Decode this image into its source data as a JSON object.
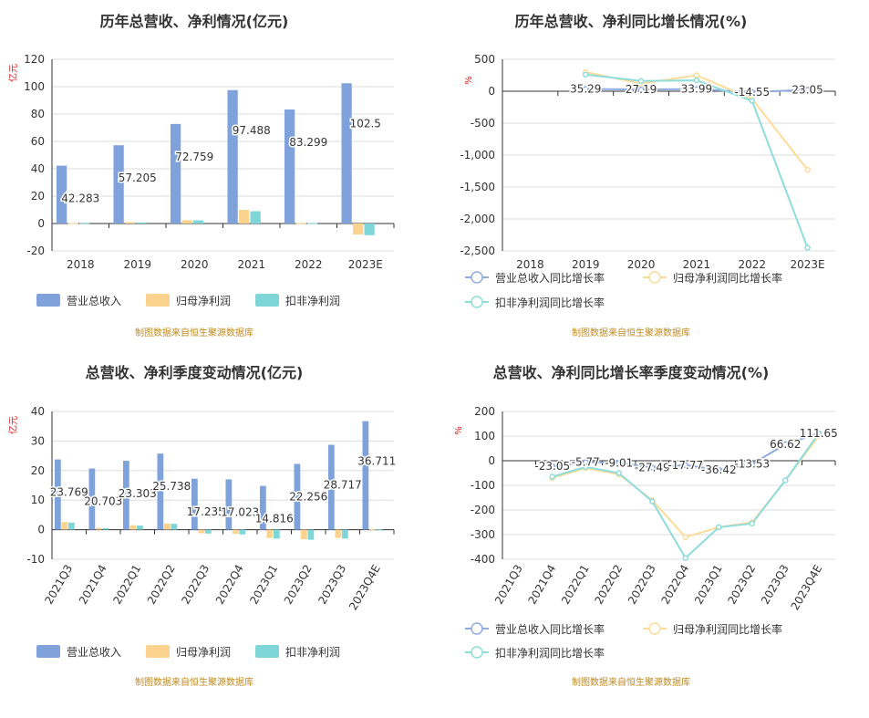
{
  "chart_data": [
    {
      "type": "bar",
      "title": "历年总营收、净利情况(亿元)",
      "unit": "亿元",
      "categories": [
        "2018",
        "2019",
        "2020",
        "2021",
        "2022",
        "2023E"
      ],
      "ylim": [
        -20,
        120
      ],
      "yticks": [
        120,
        100,
        80,
        60,
        40,
        20,
        0,
        -20
      ],
      "series": [
        {
          "name": "营业总收入",
          "color": "#7fa2db",
          "values": [
            42.283,
            57.205,
            72.759,
            97.488,
            83.299,
            102.5
          ]
        },
        {
          "name": "归母净利润",
          "color": "#fcd38e",
          "values": [
            0.3,
            1.0,
            2.4,
            10.0,
            0.4,
            -8.0
          ]
        },
        {
          "name": "扣非净利润",
          "color": "#7ed6d8",
          "values": [
            0.2,
            0.8,
            2.3,
            9.0,
            0.3,
            -8.5
          ]
        }
      ],
      "data_labels": [
        "42.283",
        "57.205",
        "72.759",
        "97.488",
        "83.299",
        "102.5"
      ],
      "source": "制图数据来自恒生聚源数据库"
    },
    {
      "type": "line",
      "title": "历年总营收、净利同比增长情况(%)",
      "unit": "%",
      "categories": [
        "2018",
        "2019",
        "2020",
        "2021",
        "2022",
        "2023E"
      ],
      "ylim": [
        -2500,
        500
      ],
      "yticks": [
        "500",
        "0",
        "-500",
        "-1,000",
        "-1,500",
        "-2,000",
        "-2,500"
      ],
      "ytick_values": [
        500,
        0,
        -500,
        -1000,
        -1500,
        -2000,
        -2500
      ],
      "series": [
        {
          "name": "营业总收入同比增长率",
          "color": "#90acdf",
          "values": [
            null,
            35.29,
            27.19,
            33.99,
            -14.55,
            23.05
          ]
        },
        {
          "name": "归母净利润同比增长率",
          "color": "#fddb9b",
          "values": [
            null,
            300,
            120,
            250,
            -120,
            -1230
          ]
        },
        {
          "name": "扣非净利润同比增长率",
          "color": "#8edcdc",
          "values": [
            null,
            260,
            160,
            170,
            -150,
            -2450
          ]
        }
      ],
      "data_labels": [
        "",
        "35.29",
        "27.19",
        "33.99",
        "-14.55",
        "23.05"
      ],
      "source": "制图数据来自恒生聚源数据库"
    },
    {
      "type": "bar",
      "title": "总营收、净利季度变动情况(亿元)",
      "unit": "亿元",
      "categories": [
        "2021Q3",
        "2021Q4",
        "2022Q1",
        "2022Q2",
        "2022Q3",
        "2022Q4",
        "2023Q1",
        "2023Q2",
        "2023Q3",
        "2023Q4E"
      ],
      "ylim": [
        -10,
        40
      ],
      "yticks": [
        40,
        30,
        20,
        10,
        0,
        -10
      ],
      "series": [
        {
          "name": "营业总收入",
          "color": "#7fa2db",
          "values": [
            23.769,
            20.703,
            23.303,
            25.738,
            17.235,
            17.023,
            14.816,
            22.256,
            28.717,
            36.711
          ]
        },
        {
          "name": "归母净利润",
          "color": "#fcd38e",
          "values": [
            2.6,
            0.6,
            1.5,
            2.1,
            -1.2,
            -1.4,
            -2.8,
            -3.2,
            -2.8,
            0.2
          ]
        },
        {
          "name": "扣非净利润",
          "color": "#7ed6d8",
          "values": [
            2.4,
            0.5,
            1.4,
            2.0,
            -1.3,
            -1.6,
            -3.0,
            -3.4,
            -3.0,
            0.1
          ]
        }
      ],
      "data_labels": [
        "23.769",
        "20.703",
        "23.303",
        "25.738",
        "17.235",
        "17.023",
        "14.816",
        "22.256",
        "28.717",
        "36.711"
      ],
      "source": "制图数据来自恒生聚源数据库"
    },
    {
      "type": "line",
      "title": "总营收、净利同比增长率季度变动情况(%)",
      "unit": "%",
      "categories": [
        "2021Q3",
        "2021Q4",
        "2022Q1",
        "2022Q2",
        "2022Q3",
        "2022Q4",
        "2023Q1",
        "2023Q2",
        "2023Q3",
        "2023Q4E"
      ],
      "ylim": [
        -400,
        200
      ],
      "yticks": [
        "200",
        "100",
        "0",
        "-100",
        "-200",
        "-300",
        "-400"
      ],
      "ytick_values": [
        200,
        100,
        0,
        -100,
        -200,
        -300,
        -400
      ],
      "series": [
        {
          "name": "营业总收入同比增长率",
          "color": "#90acdf",
          "values": [
            null,
            -23.05,
            -5.77,
            -9.01,
            -27.49,
            -17.77,
            -36.42,
            -13.53,
            66.62,
            111.65
          ]
        },
        {
          "name": "归母净利润同比增长率",
          "color": "#fddb9b",
          "values": [
            null,
            -70,
            -30,
            -55,
            -160,
            -310,
            -270,
            -250,
            -80,
            100
          ]
        },
        {
          "name": "扣非净利润同比增长率",
          "color": "#8edcdc",
          "values": [
            null,
            -65,
            -25,
            -50,
            -165,
            -395,
            -270,
            -255,
            -80,
            110
          ]
        }
      ],
      "data_labels": [
        "",
        "-23.05",
        "-5.77",
        "-9.01",
        "-27.49",
        "-17.77",
        "-36.42",
        "-13.53",
        "66.62",
        "111.65"
      ],
      "source": "制图数据来自恒生聚源数据库"
    }
  ]
}
